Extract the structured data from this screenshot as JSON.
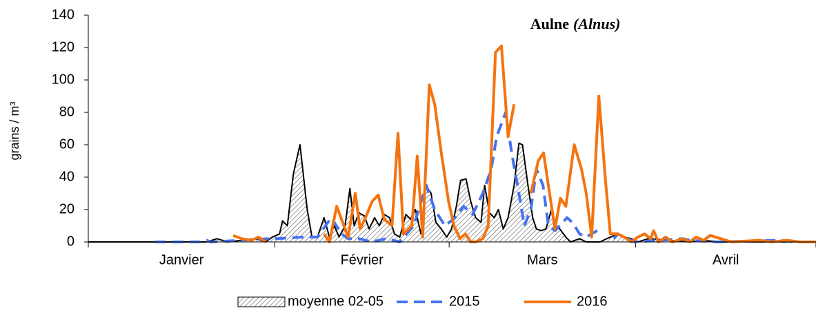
{
  "chart_data": {
    "type": "line",
    "title": "Aulne",
    "title_latin": "(Alnus)",
    "ylabel": "grains / m³",
    "categories": [
      "Janvier",
      "Février",
      "Mars",
      "Avril"
    ],
    "xlim": [
      0,
      121
    ],
    "xticks": [
      0,
      31,
      60,
      91,
      121
    ],
    "ylim": [
      0,
      140
    ],
    "yticks": [
      0,
      20,
      40,
      60,
      80,
      100,
      120,
      140
    ],
    "series": [
      {
        "name": "moyenne 02-05",
        "color": "#000000",
        "style": "area",
        "x": [
          0,
          19.7,
          21.4,
          23.2,
          27.8,
          29.5,
          30.6,
          31.8,
          32.3,
          33.1,
          34.1,
          35.2,
          36.4,
          37.2,
          38.1,
          39.2,
          40.1,
          40.9,
          41.7,
          42.7,
          43.5,
          44.2,
          45,
          45.9,
          46.7,
          47.6,
          48.4,
          49.2,
          50.1,
          50.9,
          51.8,
          52.8,
          53.6,
          54.4,
          55.3,
          56.1,
          57,
          57.8,
          58.7,
          59.6,
          60.4,
          61.2,
          61.9,
          62.8,
          63.6,
          64.4,
          65.3,
          65.9,
          66.7,
          67.5,
          68.2,
          69,
          69.8,
          70.8,
          71.6,
          72.2,
          73.1,
          73.9,
          74.5,
          75.3,
          76.1,
          77,
          77.8,
          78.4,
          79.4,
          80.2,
          81.7,
          82.8,
          85.1,
          86.2,
          88,
          89.1,
          90.3,
          91.4,
          93.1,
          100,
          102.3,
          104.6,
          121
        ],
        "values": [
          0,
          0,
          2,
          0,
          2,
          0,
          3,
          5,
          13,
          10,
          42,
          60,
          20,
          3,
          3,
          15,
          3,
          10,
          3,
          10,
          33,
          10,
          18,
          16,
          8,
          15,
          10,
          17,
          15,
          5,
          3,
          17,
          14,
          20,
          5,
          35,
          30,
          12,
          8,
          3,
          8,
          22,
          38,
          39,
          25,
          15,
          12,
          35,
          18,
          15,
          20,
          8,
          15,
          35,
          61,
          60,
          35,
          15,
          8,
          7,
          8,
          20,
          10,
          8,
          3,
          0,
          2,
          0,
          0,
          2,
          5,
          3,
          2,
          0,
          2,
          0,
          1,
          0,
          0
        ]
      },
      {
        "name": "2015",
        "color": "#4472f0",
        "style": "dashed",
        "x": [
          11.1,
          18.6,
          19.7,
          20.3,
          30,
          31.2,
          35.8,
          38.1,
          40.4,
          42.1,
          43.2,
          45,
          47.2,
          49.5,
          51.8,
          54.1,
          56.2,
          57.6,
          59.3,
          61,
          62.4,
          63.9,
          65.6,
          67,
          67.9,
          69.4,
          70.4,
          71.6,
          72.5,
          73.6,
          74.5,
          75.6,
          76.5,
          77.6,
          78.4,
          79.6,
          80.5,
          81.7,
          82.8,
          85.1,
          86.2,
          87.4,
          88,
          89.1,
          90.8,
          98.9,
          100,
          104.6,
          114.9,
          117.2
        ],
        "values": [
          0,
          0,
          1,
          0,
          2,
          2,
          3,
          3,
          15,
          5,
          2,
          2,
          0,
          2,
          0,
          10,
          35,
          20,
          10,
          15,
          22,
          17,
          30,
          45,
          65,
          80,
          55,
          30,
          10,
          20,
          45,
          35,
          10,
          7,
          10,
          15,
          12,
          5,
          3,
          8,
          null,
          2,
          5,
          3,
          0,
          2,
          1,
          0,
          1,
          0
        ]
      },
      {
        "name": "2016",
        "color": "#f4730f",
        "style": "solid",
        "x": [
          24.1,
          25.5,
          27.2,
          28.3,
          29.5,
          34,
          39.2,
          40.1,
          41.3,
          42.3,
          43.2,
          44.4,
          45.2,
          46.1,
          47.2,
          48.2,
          49.2,
          50.5,
          51.5,
          52.4,
          53.8,
          54.7,
          55.6,
          56.7,
          57.6,
          58.7,
          59.9,
          60.8,
          61.8,
          62.7,
          63.6,
          64.4,
          65.6,
          66.5,
          67.7,
          68.7,
          69.8,
          70.8,
          72,
          73.6,
          74.8,
          75.7,
          76.7,
          77.6,
          78.5,
          79.4,
          80.8,
          82,
          82.8,
          83.7,
          84.9,
          86,
          86.8,
          88,
          89.1,
          90.3,
          91.4,
          92.5,
          93.5,
          94,
          94.8,
          96,
          97.1,
          98.9,
          100,
          101.1,
          102.3,
          103.4,
          105.2,
          106.9,
          111.5,
          113.8,
          116.1,
          118.3,
          121
        ],
        "values": [
          4,
          2,
          1,
          3,
          0,
          null,
          5,
          0,
          22,
          12,
          3,
          30,
          8,
          15,
          25,
          29,
          14,
          10,
          67,
          5,
          10,
          53,
          3,
          97,
          85,
          55,
          25,
          10,
          2,
          5,
          0,
          0,
          2,
          10,
          117,
          121,
          65,
          85,
          null,
          30,
          50,
          55,
          30,
          8,
          27,
          22,
          60,
          45,
          30,
          3,
          90,
          38,
          5,
          5,
          3,
          0,
          3,
          5,
          2,
          7,
          0,
          3,
          0,
          2,
          0,
          3,
          1,
          4,
          2,
          0,
          1,
          0,
          1,
          0,
          0
        ]
      }
    ]
  }
}
